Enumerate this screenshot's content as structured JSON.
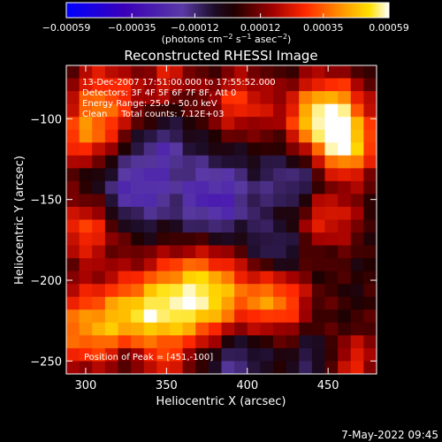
{
  "chart_data": {
    "type": "heatmap",
    "title": "Reconstructed RHESSI Image",
    "xlabel": "Heliocentric X (arcsec)",
    "ylabel": "Heliocentric Y (arcsec)",
    "xlim": [
      288,
      480
    ],
    "ylim": [
      -258,
      -67
    ],
    "x_ticks": [
      300,
      350,
      400,
      450
    ],
    "x_tick_labels": [
      "300",
      "350",
      "400",
      "450"
    ],
    "y_ticks": [
      -100,
      -150,
      -200,
      -250
    ],
    "y_tick_labels": [
      "−100",
      "−150",
      "−200",
      "−250"
    ],
    "colorbar": {
      "ticks": [
        -0.00059,
        -0.00035,
        -0.00012,
        0.00012,
        0.00035,
        0.00059
      ],
      "tick_labels": [
        "−0.00059",
        "−0.00035",
        "−0.00012",
        "0.00012",
        "0.00035",
        "0.00059"
      ],
      "range": [
        -0.00059,
        0.00059
      ],
      "label_parts": [
        "(photons cm",
        "−2",
        " s",
        "−1",
        " asec",
        "−2",
        ")"
      ]
    },
    "annotations": [
      "13-Dec-2007 17:51:00.000 to 17:55:52.000",
      "Detectors: 3F 4F 5F 6F 7F 8F, Att 0",
      "Energy Range: 25.0 - 50.0 keV",
      "Clean     Total counts: 7.12E+03"
    ],
    "peak_label": "Position of Peak = [451,-100]",
    "peak": [
      451,
      -100
    ],
    "grid_nx": 24,
    "grid_ny": 24,
    "colors": [
      "#0000ff",
      "#3800a0",
      "#5a2aa8",
      "#1a0a30",
      "#000000",
      "#8a0000",
      "#ff2000",
      "#ff8000",
      "#ffd000",
      "#ffffff"
    ]
  },
  "footer_timestamp": "7-May-2022 09:45"
}
